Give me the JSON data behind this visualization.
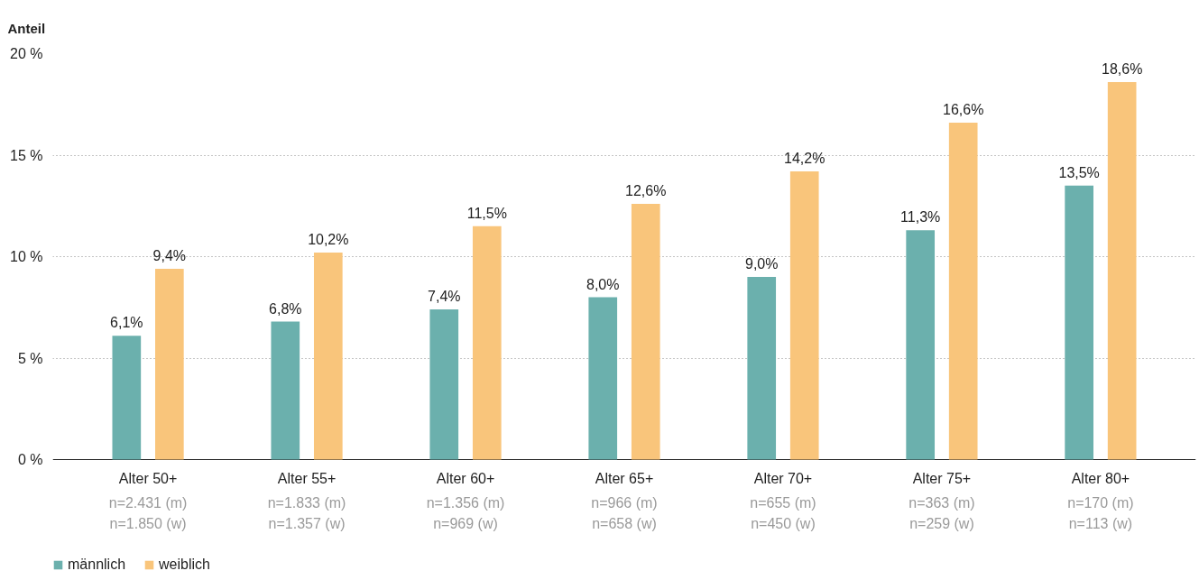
{
  "chart_data": {
    "type": "bar",
    "ylabel": "Anteil",
    "categories": [
      "Alter 50+",
      "Alter 55+",
      "Alter 60+",
      "Alter 65+",
      "Alter 70+",
      "Alter 75+",
      "Alter 80+"
    ],
    "series": [
      {
        "name": "männlich",
        "color": "#6bb0ad",
        "values": [
          6.1,
          6.8,
          7.4,
          8.0,
          9.0,
          11.3,
          13.5
        ],
        "value_labels": [
          "6,1%",
          "6,8%",
          "7,4%",
          "8,0%",
          "9,0%",
          "11,3%",
          "13,5%"
        ]
      },
      {
        "name": "weiblich",
        "color": "#f9c57b",
        "values": [
          9.4,
          10.2,
          11.5,
          12.6,
          14.2,
          16.6,
          18.6
        ],
        "value_labels": [
          "9,4%",
          "10,2%",
          "11,5%",
          "12,6%",
          "14,2%",
          "16,6%",
          "18,6%"
        ]
      }
    ],
    "annotations": [
      "n=2.431 (m)\nn=1.850 (w)",
      "n=1.833 (m)\nn=1.357 (w)",
      "n=1.356 (m)\nn=969 (w)",
      "n=966 (m)\nn=658 (w)",
      "n=655 (m)\nn=450 (w)",
      "n=363 (m)\nn=259 (w)",
      "n=170 (m)\nn=113 (w)"
    ],
    "ylim": [
      0,
      20
    ],
    "yticks": [
      {
        "value": 0,
        "label": "0 %"
      },
      {
        "value": 5,
        "label": "5 %"
      },
      {
        "value": 10,
        "label": "10 %"
      },
      {
        "value": 15,
        "label": "15 %"
      },
      {
        "value": 20,
        "label": "20 %"
      }
    ],
    "grid": "y",
    "legend": "bottom left"
  }
}
